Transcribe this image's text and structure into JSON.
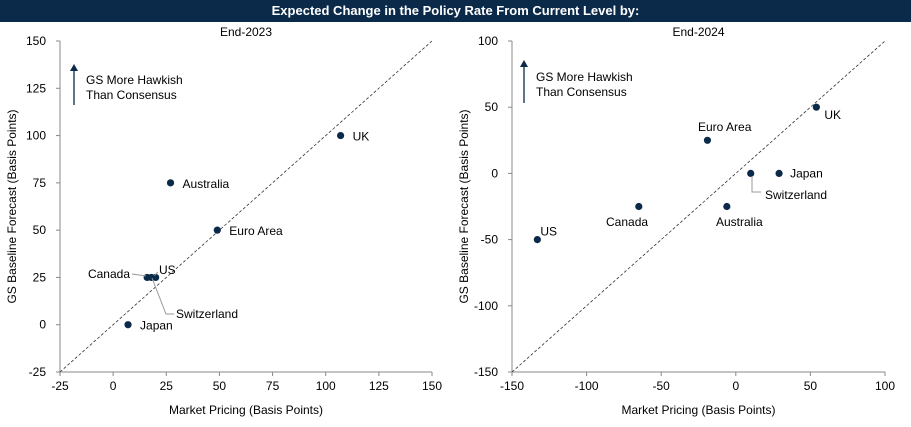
{
  "header": {
    "title": "Expected Change in the Policy Rate From Current Level by:"
  },
  "colors": {
    "header_bg": "#0b2a4a",
    "point": "#0b2a4a",
    "arrow": "#0b2a4a"
  },
  "chart_data": [
    {
      "type": "scatter",
      "title": "End-2023",
      "xlabel": "Market Pricing (Basis Points)",
      "ylabel": "GS Baseline Forecast (Basis Points)",
      "xlim": [
        -25,
        150
      ],
      "ylim": [
        -25,
        150
      ],
      "xticks": [
        -25,
        0,
        25,
        50,
        75,
        100,
        125,
        150
      ],
      "yticks": [
        -25,
        0,
        25,
        50,
        75,
        100,
        125,
        150
      ],
      "xtick_labels": [
        "-25",
        "0",
        "25",
        "50",
        "75",
        "100",
        "125",
        "150"
      ],
      "ytick_labels": [
        "-25",
        "0",
        "25",
        "50",
        "75",
        "100",
        "125",
        "150"
      ],
      "diagonal": true,
      "annotation": "GS More Hawkish\nThan Consensus",
      "points": [
        {
          "name": "UK",
          "x": 107,
          "y": 100
        },
        {
          "name": "Australia",
          "x": 27,
          "y": 75
        },
        {
          "name": "Euro Area",
          "x": 49,
          "y": 50
        },
        {
          "name": "Canada",
          "x": 16,
          "y": 25
        },
        {
          "name": "US",
          "x": 20,
          "y": 25
        },
        {
          "name": "Switzerland",
          "x": 18,
          "y": 25
        },
        {
          "name": "Japan",
          "x": 7,
          "y": 0
        }
      ]
    },
    {
      "type": "scatter",
      "title": "End-2024",
      "xlabel": "Market Pricing (Basis Points)",
      "ylabel": "GS Baseline Forecast (Basis Points)",
      "xlim": [
        -150,
        100
      ],
      "ylim": [
        -150,
        100
      ],
      "xticks": [
        -150,
        -100,
        -50,
        0,
        50,
        100
      ],
      "yticks": [
        -150,
        -100,
        -50,
        0,
        50,
        100
      ],
      "xtick_labels": [
        "-150",
        "-100",
        "-50",
        "0",
        "50",
        "100"
      ],
      "ytick_labels": [
        "-150",
        "-100",
        "-50",
        "0",
        "50",
        "100"
      ],
      "diagonal": true,
      "annotation": "GS More Hawkish\nThan Consensus",
      "points": [
        {
          "name": "UK",
          "x": 54,
          "y": 50
        },
        {
          "name": "Euro Area",
          "x": -19,
          "y": 25
        },
        {
          "name": "Japan",
          "x": 29,
          "y": 0
        },
        {
          "name": "Switzerland",
          "x": 10,
          "y": 0
        },
        {
          "name": "Canada",
          "x": -65,
          "y": -25
        },
        {
          "name": "Australia",
          "x": -6,
          "y": -25
        },
        {
          "name": "US",
          "x": -133,
          "y": -50
        }
      ]
    }
  ]
}
